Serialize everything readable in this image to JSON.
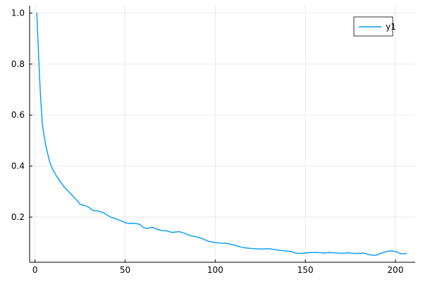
{
  "chart_data": {
    "type": "line",
    "title": "",
    "xlabel": "",
    "ylabel": "",
    "xlim": [
      -3,
      211
    ],
    "ylim": [
      0.023,
      1.029
    ],
    "grid": true,
    "legend_position": "top-right",
    "x_ticks": [
      0,
      50,
      100,
      150,
      200
    ],
    "y_ticks": [
      0.2,
      0.4,
      0.6,
      0.8,
      1.0
    ],
    "x_tick_labels": [
      "0",
      "50",
      "100",
      "150",
      "200"
    ],
    "y_tick_labels": [
      "0.2",
      "0.4",
      "0.6",
      "0.8",
      "1.0"
    ],
    "series": [
      {
        "name": "y1",
        "color": "#009AFA",
        "points": [
          [
            1,
            1.0
          ],
          [
            2,
            0.83
          ],
          [
            3,
            0.68
          ],
          [
            4,
            0.57
          ],
          [
            5,
            0.52
          ],
          [
            6,
            0.48
          ],
          [
            7,
            0.45
          ],
          [
            8,
            0.42
          ],
          [
            9,
            0.4
          ],
          [
            10,
            0.385
          ],
          [
            12,
            0.36
          ],
          [
            14,
            0.34
          ],
          [
            16,
            0.32
          ],
          [
            18,
            0.305
          ],
          [
            20,
            0.29
          ],
          [
            22,
            0.275
          ],
          [
            24,
            0.26
          ],
          [
            25,
            0.25
          ],
          [
            28,
            0.245
          ],
          [
            30,
            0.238
          ],
          [
            32,
            0.226
          ],
          [
            35,
            0.224
          ],
          [
            38,
            0.217
          ],
          [
            40,
            0.208
          ],
          [
            42,
            0.2
          ],
          [
            45,
            0.193
          ],
          [
            48,
            0.185
          ],
          [
            50,
            0.178
          ],
          [
            52,
            0.175
          ],
          [
            55,
            0.176
          ],
          [
            58,
            0.172
          ],
          [
            60,
            0.16
          ],
          [
            62,
            0.155
          ],
          [
            65,
            0.16
          ],
          [
            68,
            0.152
          ],
          [
            70,
            0.148
          ],
          [
            73,
            0.146
          ],
          [
            76,
            0.14
          ],
          [
            80,
            0.143
          ],
          [
            83,
            0.137
          ],
          [
            86,
            0.128
          ],
          [
            90,
            0.122
          ],
          [
            93,
            0.115
          ],
          [
            96,
            0.106
          ],
          [
            100,
            0.1
          ],
          [
            103,
            0.098
          ],
          [
            106,
            0.097
          ],
          [
            110,
            0.092
          ],
          [
            113,
            0.085
          ],
          [
            116,
            0.08
          ],
          [
            120,
            0.077
          ],
          [
            125,
            0.075
          ],
          [
            130,
            0.076
          ],
          [
            134,
            0.072
          ],
          [
            138,
            0.068
          ],
          [
            142,
            0.065
          ],
          [
            145,
            0.058
          ],
          [
            148,
            0.058
          ],
          [
            152,
            0.061
          ],
          [
            156,
            0.062
          ],
          [
            160,
            0.059
          ],
          [
            163,
            0.061
          ],
          [
            166,
            0.06
          ],
          [
            170,
            0.058
          ],
          [
            174,
            0.06
          ],
          [
            178,
            0.057
          ],
          [
            182,
            0.059
          ],
          [
            186,
            0.052
          ],
          [
            189,
            0.05
          ],
          [
            192,
            0.058
          ],
          [
            195,
            0.065
          ],
          [
            198,
            0.068
          ],
          [
            201,
            0.063
          ],
          [
            203,
            0.056
          ],
          [
            206,
            0.057
          ]
        ]
      }
    ]
  }
}
